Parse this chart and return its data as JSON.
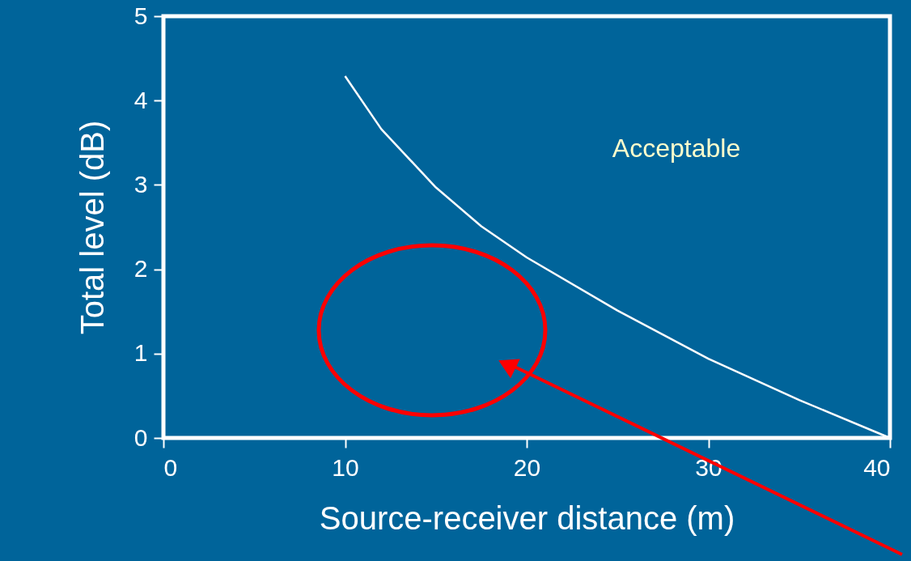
{
  "chart_data": {
    "type": "line",
    "xlabel": "Source-receiver distance (m)",
    "ylabel": "Total level (dB)",
    "x": [
      10,
      12,
      15,
      17.5,
      20,
      25,
      30,
      35,
      40
    ],
    "series": [
      {
        "color": "#ffffff",
        "values": [
          4.29,
          3.66,
          2.97,
          2.51,
          2.14,
          1.51,
          0.94,
          0.45,
          0
        ]
      }
    ],
    "xlim": [
      0,
      40
    ],
    "ylim": [
      0,
      5
    ],
    "xticks": [
      0,
      10,
      20,
      30,
      40
    ],
    "yticks": [
      0,
      1,
      2,
      3,
      4,
      5
    ],
    "annotations": [
      "Acceptable"
    ],
    "grid": false,
    "marker": "none",
    "line_style": "solid"
  }
}
